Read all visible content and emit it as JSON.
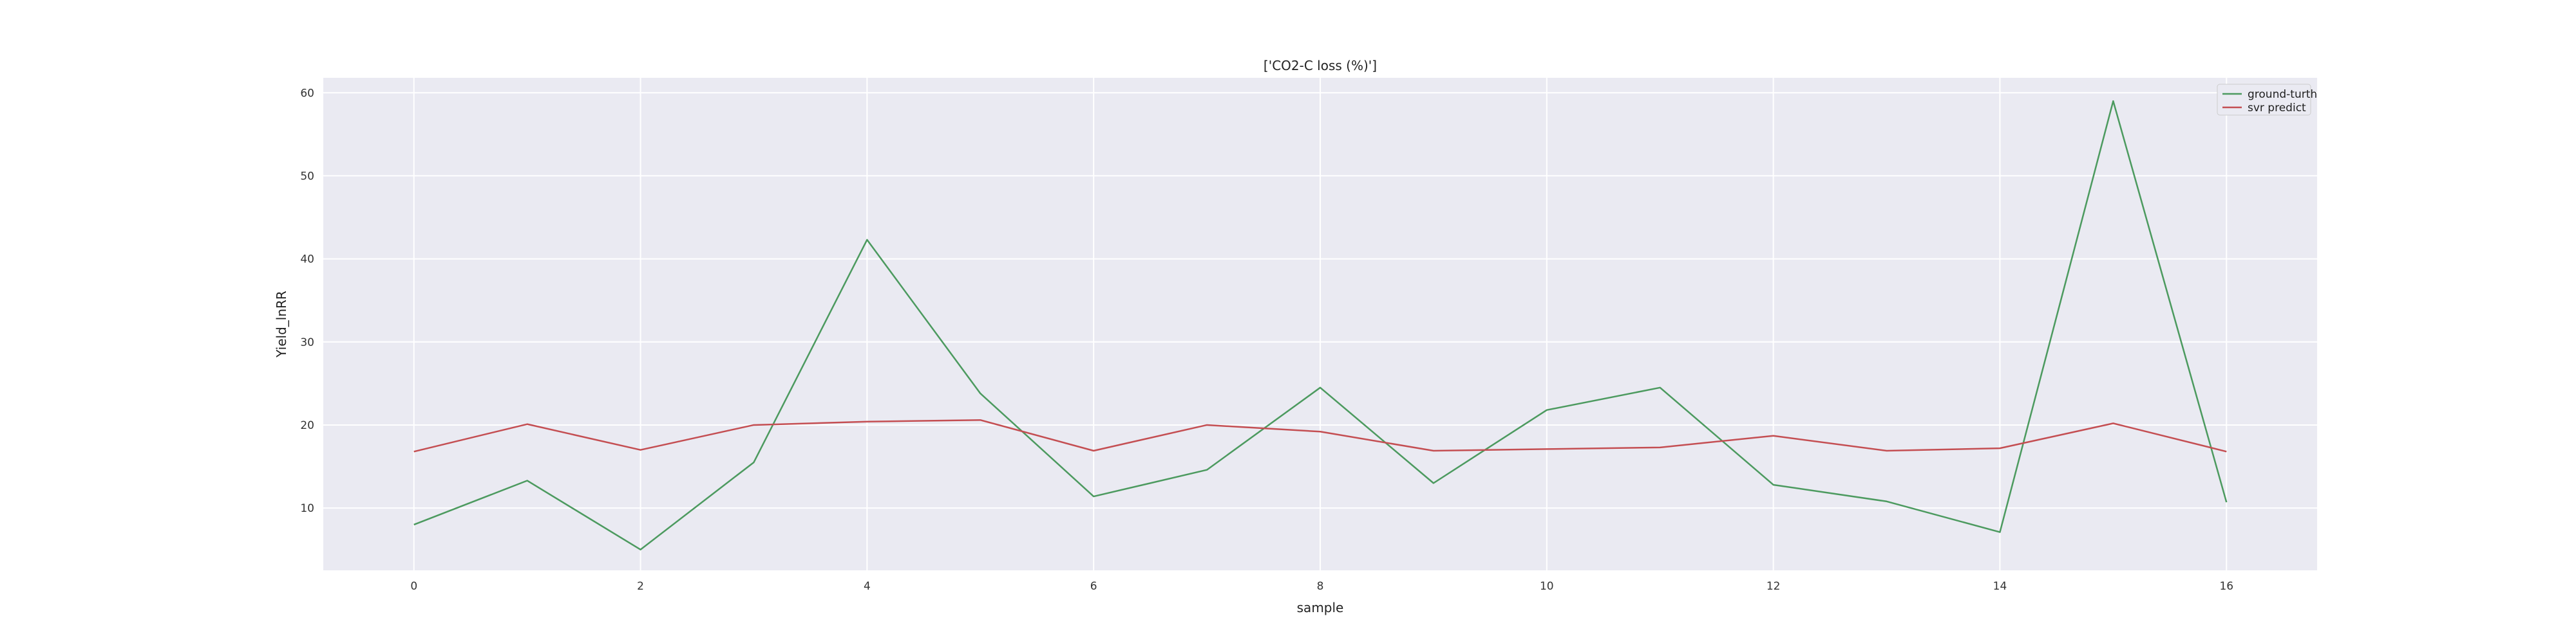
{
  "chart_data": {
    "type": "line",
    "title": "['CO2-C loss (%)']",
    "xlabel": "sample",
    "ylabel": "Yield_lnRR",
    "x": [
      0,
      1,
      2,
      3,
      4,
      5,
      6,
      7,
      8,
      9,
      10,
      11,
      12,
      13,
      14,
      15,
      16
    ],
    "xlim": [
      -0.8,
      16.8
    ],
    "ylim": [
      2.5,
      61.8
    ],
    "xticks": [
      0,
      2,
      4,
      6,
      8,
      10,
      12,
      14,
      16
    ],
    "yticks": [
      10,
      20,
      30,
      40,
      50,
      60
    ],
    "grid": true,
    "legend_position": "top-right",
    "background_color": "#eaeaf2",
    "series": [
      {
        "name": "ground-turth",
        "color": "#4c9a5f",
        "values": [
          8.0,
          13.3,
          5.0,
          15.5,
          42.3,
          23.8,
          11.4,
          14.6,
          24.5,
          13.0,
          21.8,
          24.5,
          12.8,
          10.8,
          7.1,
          59.0,
          10.7
        ]
      },
      {
        "name": "svr predict",
        "color": "#c44e52",
        "values": [
          16.8,
          20.1,
          17.0,
          20.0,
          20.4,
          20.6,
          16.9,
          20.0,
          19.2,
          16.9,
          17.1,
          17.3,
          18.7,
          16.9,
          17.2,
          20.2,
          16.8
        ]
      }
    ]
  }
}
